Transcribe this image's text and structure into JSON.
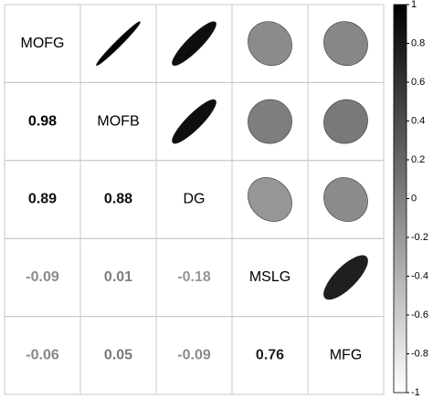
{
  "chart_data": {
    "type": "corrplot",
    "variables": [
      "MOFG",
      "MOFB",
      "DG",
      "MSLG",
      "MFG"
    ],
    "values": [
      [
        0.98
      ],
      [
        0.89,
        0.88
      ],
      [
        -0.09,
        0.01,
        -0.18
      ],
      [
        -0.06,
        0.05,
        -0.09,
        0.76
      ]
    ],
    "colorbar_lim": [
      -1,
      1
    ],
    "colorbar_ticks": [
      1,
      0.8,
      0.6,
      0.4,
      0.2,
      0,
      -0.2,
      -0.4,
      -0.6,
      -0.8,
      -1
    ],
    "colors": [
      "#ffffff",
      "#000000"
    ]
  }
}
